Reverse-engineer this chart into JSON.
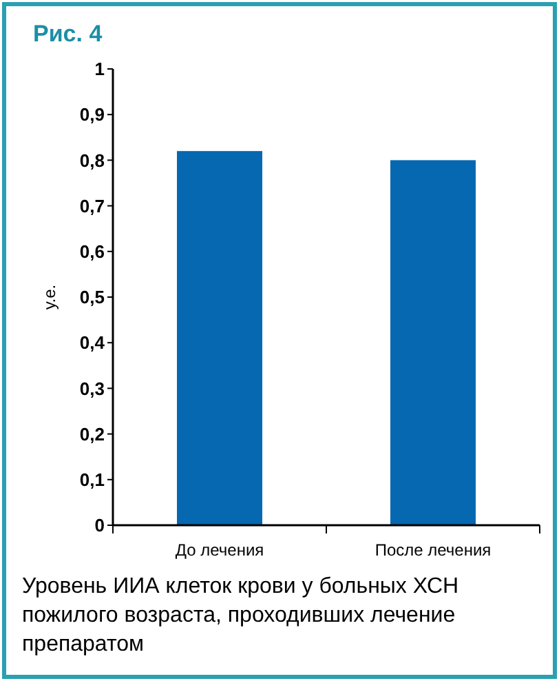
{
  "chart_data": {
    "type": "bar",
    "title": "Рис. 4",
    "ylabel": "у.е.",
    "categories": [
      "До лечения",
      "После лечения"
    ],
    "values": [
      0.82,
      0.8
    ],
    "color": "#0568b0",
    "ylim": [
      0,
      1
    ],
    "yticks": [
      0,
      {
        "value": 0.1,
        "label": "0,1"
      },
      {
        "value": 0.2,
        "label": "0,2"
      },
      {
        "value": 0.3,
        "label": "0,3"
      },
      {
        "value": 0.4,
        "label": "0,4"
      },
      {
        "value": 0.5,
        "label": "0,5"
      },
      {
        "value": 0.6,
        "label": "0,6"
      },
      {
        "value": 0.7,
        "label": "0,7"
      },
      {
        "value": 0.8,
        "label": "0,8"
      },
      {
        "value": 0.9,
        "label": "0,9"
      },
      1
    ],
    "annotations": [
      "Уровень ИИА клеток крови у больных ХСН пожилого возраста, проходивших лечение препаратом"
    ],
    "grid": false
  }
}
